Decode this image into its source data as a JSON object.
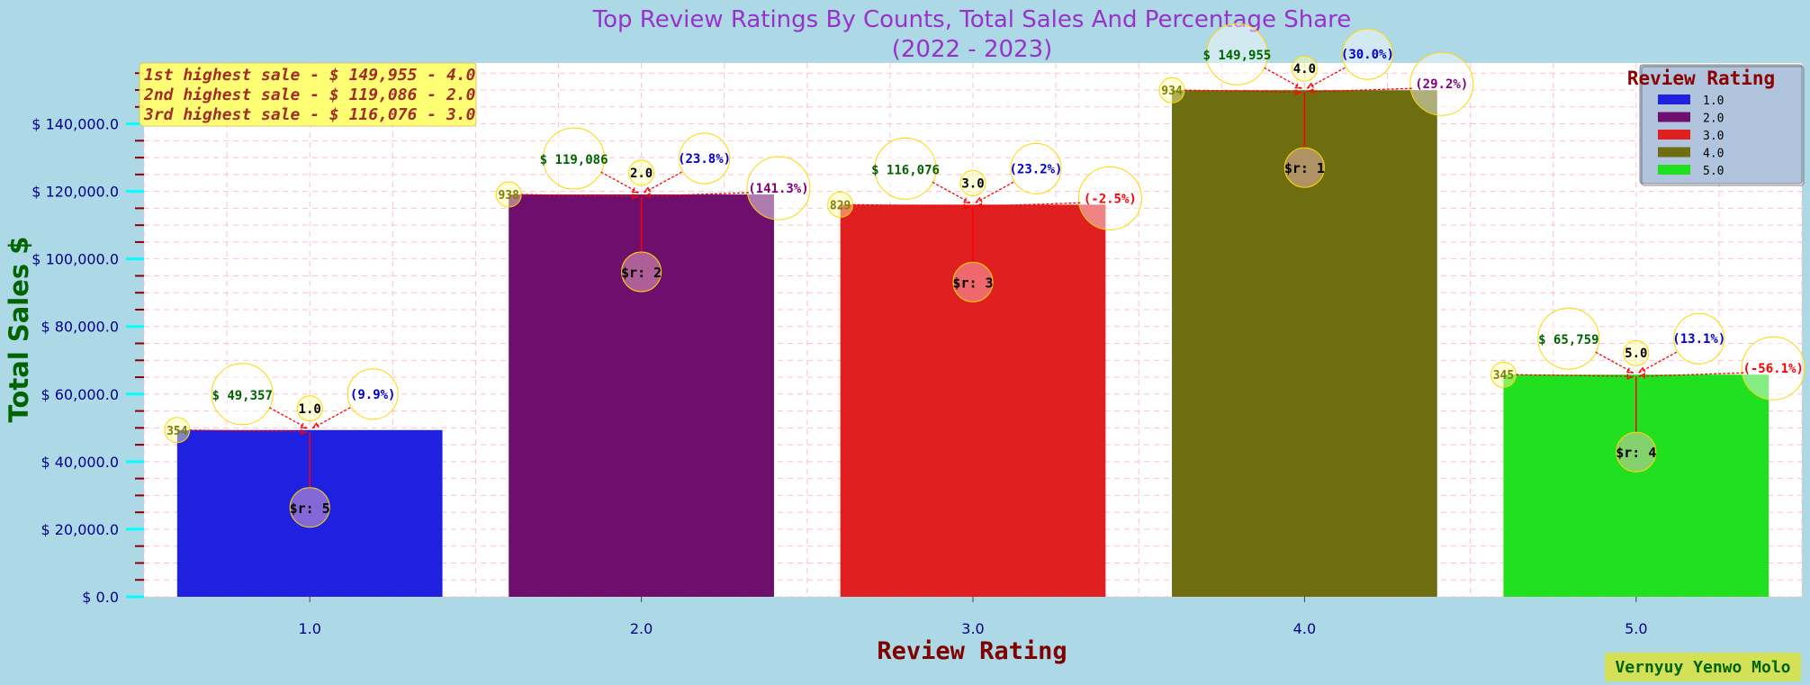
{
  "chart_data": {
    "type": "bar",
    "title": "Top Review Ratings By Counts, Total Sales And Percentage Share",
    "subtitle": "(2022 - 2023)",
    "xlabel": "Review Rating",
    "ylabel": "Total Sales $",
    "categories": [
      "1.0",
      "2.0",
      "3.0",
      "4.0",
      "5.0"
    ],
    "values": [
      49357,
      119086,
      116076,
      149955,
      65759
    ],
    "value_labels": [
      "$ 49,357",
      "$ 119,086",
      "$ 116,076",
      "$ 149,955",
      "$ 65,759"
    ],
    "counts": [
      "354",
      "938",
      "829",
      "934",
      "345"
    ],
    "share_labels": [
      "(9.9%)",
      "(23.8%)",
      "(23.2%)",
      "(30.0%)",
      "(13.1%)"
    ],
    "change_labels": [
      "",
      "(141.3%)",
      "(-2.5%)",
      "(29.2%)",
      "(-56.1%)"
    ],
    "change_colors": [
      "",
      "#800080",
      "#ff0000",
      "#800080",
      "#ff0000"
    ],
    "rank_labels": [
      "$r: 5",
      "$r: 2",
      "$r: 3",
      "$r: 1",
      "$r: 4"
    ],
    "colors": [
      "#2020e0",
      "#6e0f6e",
      "#e02020",
      "#6e6e10",
      "#20e020"
    ],
    "ylim": [
      0,
      158000
    ],
    "yticks": [
      0,
      20000,
      40000,
      60000,
      80000,
      100000,
      120000,
      140000
    ],
    "ytick_labels": [
      "$ 0.0",
      "$ 20,000.0",
      "$ 40,000.0",
      "$ 60,000.0",
      "$ 80,000.0",
      "$ 100,000.0",
      "$ 120,000.0",
      "$ 140,000.0"
    ],
    "grid": true,
    "legend": {
      "title": "Review Rating",
      "placement": "top-right",
      "entries": [
        "1.0",
        "2.0",
        "3.0",
        "4.0",
        "5.0"
      ]
    },
    "annotation_box": {
      "placement": "top-left",
      "lines": [
        "1st highest sale - $ 149,955 - 4.0",
        "2nd highest sale - $ 119,086 - 2.0",
        "3rd highest sale - $ 116,076 - 3.0"
      ]
    }
  },
  "credit": "Vernyuy Yenwo Molo"
}
